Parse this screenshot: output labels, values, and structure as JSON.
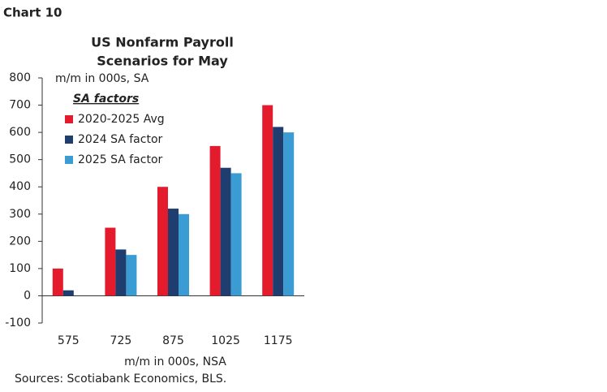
{
  "header": "Chart 10",
  "chart_data": {
    "type": "bar",
    "title_lines": [
      "US Nonfarm Payroll",
      "Scenarios for May"
    ],
    "y_unit_label": "m/m in 000s, SA",
    "x_axis_label": "m/m in 000s, NSA",
    "legend_title": "SA factors",
    "categories": [
      "575",
      "725",
      "875",
      "1025",
      "1175"
    ],
    "series": [
      {
        "name": "2020-2025 Avg",
        "color": "#e31b2d",
        "values": [
          100,
          250,
          400,
          550,
          700
        ]
      },
      {
        "name": "2024 SA factor",
        "color": "#1f3d6f",
        "values": [
          20,
          170,
          320,
          470,
          620
        ]
      },
      {
        "name": "2025 SA factor",
        "color": "#3b9bd3",
        "values": [
          0,
          150,
          300,
          450,
          600
        ]
      }
    ],
    "ylim": [
      -100,
      800
    ],
    "yticks": [
      -100,
      0,
      100,
      200,
      300,
      400,
      500,
      600,
      700,
      800
    ],
    "grid": false
  },
  "source": "Sources: Scotiabank Economics, BLS."
}
